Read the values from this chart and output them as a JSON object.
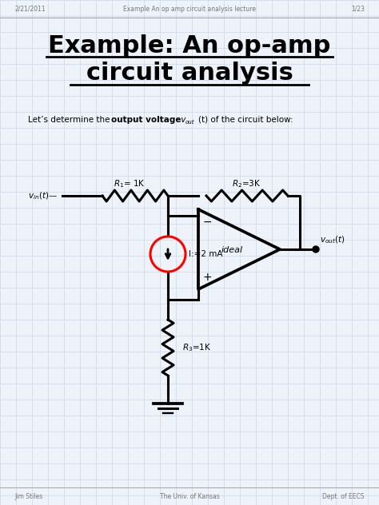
{
  "title_line1": "Example: An op-amp",
  "title_line2": "circuit analysis",
  "header_left": "2/21/2011",
  "header_center": "Example An op amp circuit analysis lecture",
  "header_right": "1/23",
  "footer_left": "Jim Stiles",
  "footer_center": "The Univ. of Kansas",
  "footer_right": "Dept. of EECS",
  "bg_color": "#eef2f9",
  "grid_color": "#c8d8ee",
  "line_color": "#000000",
  "I_label": "I:=2 mA",
  "ideal_label": "ideal",
  "R1_text": "R₁= 1K",
  "R2_text": "R₂=3K",
  "R3_text": "R₃=1K"
}
